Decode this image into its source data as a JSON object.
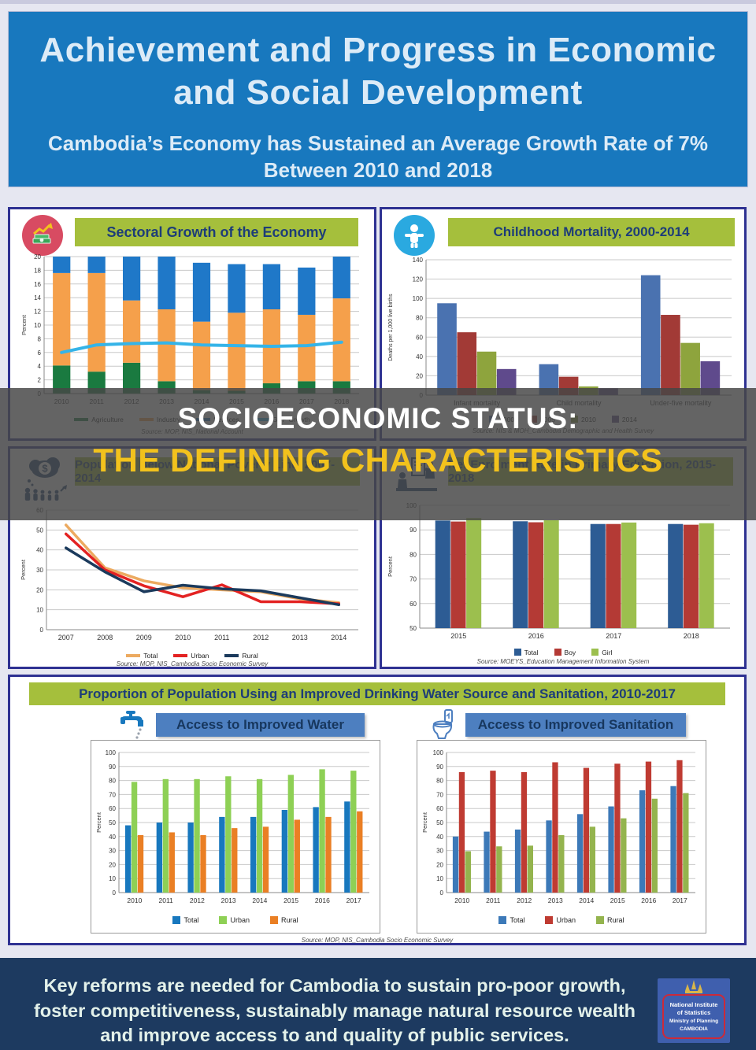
{
  "header": {
    "title_line1": "Achievement and Progress in Economic",
    "title_line2": "and Social Development",
    "subtitle_line1": "Cambodia’s Economy has Sustained an Average Growth Rate of 7%",
    "subtitle_line2": "Between 2010 and 2018"
  },
  "overlay": {
    "line1": "SOCIOECONOMIC STATUS:",
    "line2": "THE DEFINING CHARACTERISTICS"
  },
  "panels": {
    "sectoral": {
      "title": "Sectoral Growth of the Economy",
      "icon": "economic-growth-icon",
      "source": "Source: MOP, NIS_National Account"
    },
    "mortality": {
      "title": "Childhood Mortality, 2000-2014",
      "icon": "child-icon",
      "source": "Source: NIS & MOH_Cambodia Demographic and Health Survey"
    },
    "poverty": {
      "title": "Population Below National Poverty Line, 2007-2014",
      "icon": "poverty-money-people-icon",
      "source": "Source: MOP, NIS_Cambodia Socio Economic Survey"
    },
    "enrolment": {
      "title": "Net Enrolment Rate in Primary Education, 2015-2018",
      "icon": "education-icon",
      "source": "Source: MOEYS_Education Management Information System"
    },
    "water_sanitation": {
      "banner": "Proportion of Population Using an Improved Drinking Water Source and Sanitation, 2010-2017",
      "water_title": "Access to Improved Water",
      "water_icon": "faucet-icon",
      "sanitation_title": "Access to Improved Sanitation",
      "sanitation_icon": "toilet-icon",
      "source": "Source: MOP, NIS_Cambodia Socio Economic Survey"
    }
  },
  "footer": {
    "message": "Key reforms are needed for Cambodia to sustain pro-poor growth, foster competitiveness, sustainably manage natural resource wealth and improve access to and quality of public services.",
    "logo": {
      "org_line1": "National Institute",
      "org_line2": "of Statistics",
      "ministry": "Ministry of Planning",
      "country": "CAMBODIA"
    }
  },
  "colors": {
    "header_blue": "#1878be",
    "banner_green": "#a5bf3c",
    "panel_border": "#2e3192",
    "footer_navy": "#1d3a60",
    "overlay_yellow": "#f2c21d",
    "sub_banner_blue": "#4d7fc0"
  },
  "chart_data": [
    {
      "id": "sectoral",
      "type": "bar",
      "subtype": "stacked-with-line",
      "title": "Sectoral Growth of the Economy",
      "categories": [
        "2010",
        "2011",
        "2012",
        "2013",
        "2014",
        "2015",
        "2016",
        "2017",
        "2018"
      ],
      "series": [
        {
          "name": "Agriculture",
          "type": "bar",
          "color": "#1a7a40",
          "values": [
            4.1,
            3.2,
            4.5,
            1.8,
            0.5,
            0.4,
            1.5,
            1.8,
            1.8
          ]
        },
        {
          "name": "Industry",
          "type": "bar",
          "color": "#f5a04b",
          "values": [
            13.5,
            14.4,
            9.1,
            10.5,
            10.0,
            11.4,
            10.8,
            9.7,
            12.1
          ]
        },
        {
          "name": "Services",
          "type": "bar",
          "color": "#1f78c8",
          "values": [
            2.4,
            2.4,
            6.4,
            7.7,
            8.6,
            7.1,
            6.6,
            6.9,
            6.1
          ]
        },
        {
          "name": "GDP Growth",
          "type": "line",
          "color": "#35b4e8",
          "values": [
            6.0,
            7.1,
            7.3,
            7.4,
            7.1,
            7.0,
            6.9,
            7.0,
            7.5
          ]
        }
      ],
      "xlabel": "",
      "ylabel": "Percent",
      "ylim": [
        0,
        20
      ],
      "ytick": 2,
      "grid": true,
      "legend_position": "bottom",
      "swatch": "wide"
    },
    {
      "id": "mortality",
      "type": "bar",
      "subtype": "grouped",
      "title": "Childhood Mortality, 2000-2014",
      "categories": [
        "Infant mortality",
        "Child mortality",
        "Under-five mortality"
      ],
      "series": [
        {
          "name": "2000",
          "type": "bar",
          "color": "#4a72b0",
          "values": [
            95,
            32,
            124
          ]
        },
        {
          "name": "2005",
          "type": "bar",
          "color": "#a23a36",
          "values": [
            65,
            19,
            83
          ]
        },
        {
          "name": "2010",
          "type": "bar",
          "color": "#8ea43d",
          "values": [
            45,
            9,
            54
          ]
        },
        {
          "name": "2014",
          "type": "bar",
          "color": "#5f4a8c",
          "values": [
            27,
            7,
            35
          ]
        }
      ],
      "xlabel": "",
      "ylabel": "Deaths per 1,000 live births",
      "ylim": [
        0,
        140
      ],
      "ytick": 20,
      "grid": true,
      "legend_position": "bottom",
      "swatch": "square"
    },
    {
      "id": "poverty",
      "type": "line",
      "title": "Population Below National Poverty Line, 2007-2014",
      "categories": [
        "2007",
        "2008",
        "2009",
        "2010",
        "2011",
        "2012",
        "2013",
        "2014"
      ],
      "series": [
        {
          "name": "Total",
          "type": "line",
          "color": "#ecaa60",
          "values": [
            52.5,
            31,
            24.5,
            21,
            20,
            19,
            15.5,
            13.5
          ]
        },
        {
          "name": "Urban",
          "type": "line",
          "color": "#e32222",
          "values": [
            48,
            30,
            22,
            16.5,
            22.5,
            14,
            14,
            13
          ]
        },
        {
          "name": "Rural",
          "type": "line",
          "color": "#1b3a5c",
          "values": [
            41,
            29,
            19,
            22.3,
            20.5,
            19.5,
            16,
            12.5
          ]
        }
      ],
      "xlabel": "",
      "ylabel": "Percent",
      "ylim": [
        0,
        60
      ],
      "ytick": 10,
      "grid": true,
      "legend_position": "bottom",
      "swatch": "wide"
    },
    {
      "id": "enrolment",
      "type": "bar",
      "subtype": "grouped",
      "title": "Net Enrolment Rate in Primary Education, 2015-2018",
      "categories": [
        "2015",
        "2016",
        "2017",
        "2018"
      ],
      "series": [
        {
          "name": "Total",
          "type": "bar",
          "color": "#2d5c94",
          "values": [
            93.8,
            93.5,
            92.4,
            92.4
          ]
        },
        {
          "name": "Boy",
          "type": "bar",
          "color": "#b43a35",
          "values": [
            93.4,
            93.1,
            92.4,
            92.1
          ]
        },
        {
          "name": "Girl",
          "type": "bar",
          "color": "#9cbf4e",
          "values": [
            94.8,
            93.9,
            93.0,
            92.7
          ]
        }
      ],
      "xlabel": "",
      "ylabel": "Percent",
      "ylim": [
        50,
        100
      ],
      "ytick": 10,
      "grid": true,
      "legend_position": "bottom",
      "swatch": "square"
    },
    {
      "id": "water",
      "type": "bar",
      "subtype": "grouped",
      "title": "Access to Improved Water",
      "categories": [
        "2010",
        "2011",
        "2012",
        "2013",
        "2014",
        "2015",
        "2016",
        "2017"
      ],
      "series": [
        {
          "name": "Total",
          "type": "bar",
          "color": "#1878be",
          "values": [
            48,
            50,
            50,
            54,
            54,
            59,
            61,
            65
          ]
        },
        {
          "name": "Urban",
          "type": "bar",
          "color": "#8ed055",
          "values": [
            79,
            81,
            81,
            83,
            81,
            84,
            88,
            87
          ]
        },
        {
          "name": "Rural",
          "type": "bar",
          "color": "#ea7f24",
          "values": [
            41,
            43,
            41,
            46,
            47,
            52,
            54,
            58
          ]
        }
      ],
      "xlabel": "",
      "ylabel": "Percent",
      "ylim": [
        0,
        100
      ],
      "ytick": 10,
      "grid": true,
      "legend_position": "bottom",
      "swatch": "square"
    },
    {
      "id": "sanitation",
      "type": "bar",
      "subtype": "grouped",
      "title": "Access to Improved Sanitation",
      "categories": [
        "2010",
        "2011",
        "2012",
        "2013",
        "2014",
        "2015",
        "2016",
        "2017"
      ],
      "series": [
        {
          "name": "Total",
          "type": "bar",
          "color": "#3c79b8",
          "values": [
            40,
            43.5,
            45,
            51.5,
            56,
            61.5,
            73,
            76
          ]
        },
        {
          "name": "Urban",
          "type": "bar",
          "color": "#bf3b32",
          "values": [
            86,
            87,
            86,
            93,
            89,
            92,
            93.5,
            94.5
          ]
        },
        {
          "name": "Rural",
          "type": "bar",
          "color": "#94b44e",
          "values": [
            29.5,
            33,
            33.5,
            41,
            47,
            53,
            67,
            71
          ]
        }
      ],
      "xlabel": "",
      "ylabel": "Percent",
      "ylim": [
        0,
        100
      ],
      "ytick": 10,
      "grid": true,
      "legend_position": "bottom",
      "swatch": "square"
    }
  ]
}
